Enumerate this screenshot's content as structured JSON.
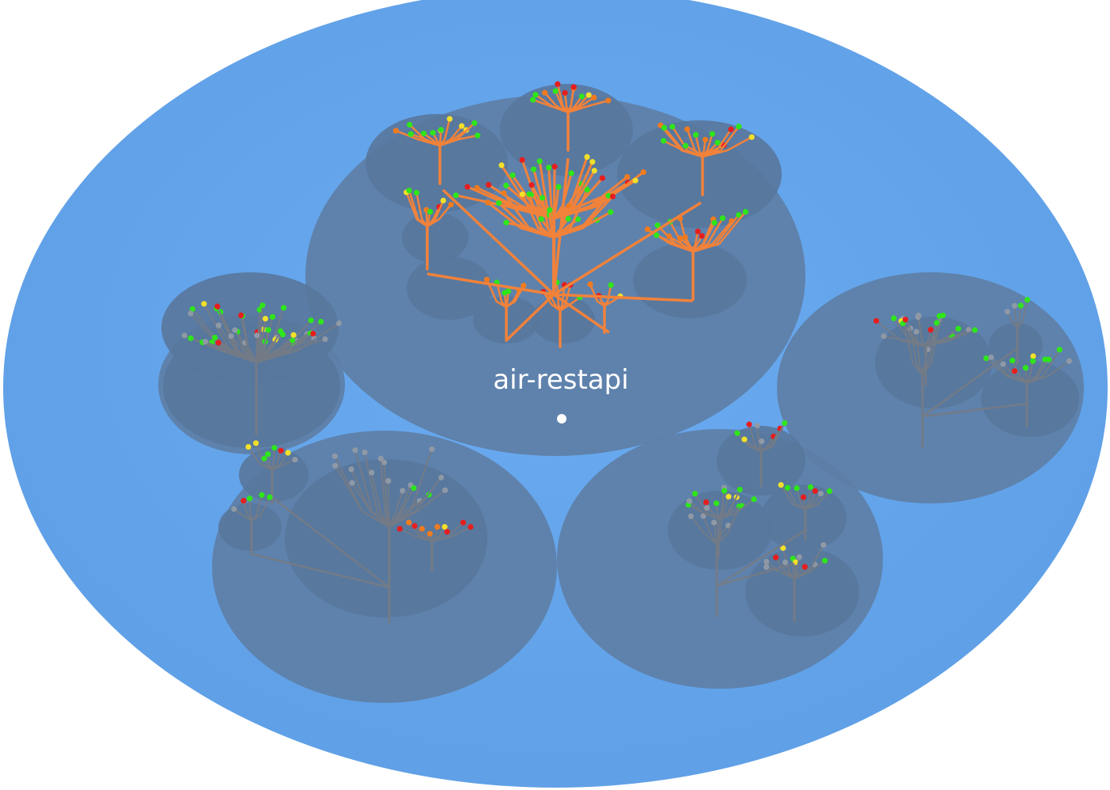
{
  "colors": {
    "background": "#ffffff",
    "ground": "#65a6ea",
    "platform": "#5d7fa6",
    "platform_inner": "#58779c",
    "branch_selected": "#f1823b",
    "branch_default": "#737b87",
    "leaf_grey": "#8f99a6",
    "leaf_green": "#2ee61a",
    "leaf_yellow": "#f2e02a",
    "leaf_orange": "#f07b1f",
    "leaf_red": "#e61e1e",
    "label": "#ffffff"
  },
  "scene": {
    "type": "software-city-forest",
    "selected_label": "air-restapi",
    "platforms": [
      {
        "name": "air-restapi",
        "selected": true,
        "trees": 8
      },
      {
        "name": "",
        "selected": false,
        "trees": 2
      },
      {
        "name": "",
        "selected": false,
        "trees": 3
      },
      {
        "name": "",
        "selected": false,
        "trees": 3
      },
      {
        "name": "",
        "selected": false,
        "trees": 4
      }
    ]
  }
}
